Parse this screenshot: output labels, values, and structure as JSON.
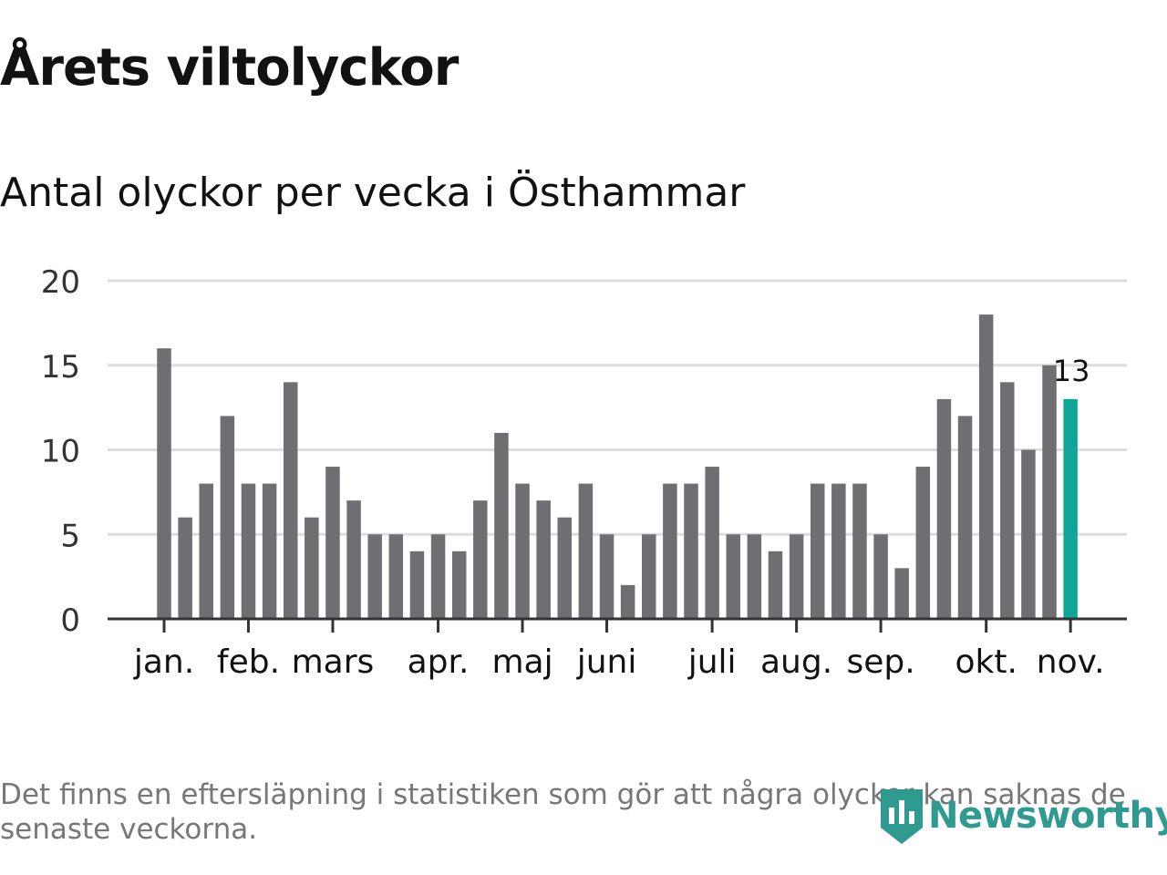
{
  "title": "Årets viltolyckor",
  "subtitle": "Antal olyckor per vecka i Östhammar",
  "footnote": "Det finns en eftersläpning i statistiken som gör att några olyckor kan saknas de senaste veckorna.",
  "brand": "Newsworthy",
  "colors": {
    "bar": "#6f6e73",
    "highlight": "#11a59a",
    "grid": "#dddddd",
    "axis": "#333333",
    "text": "#121212",
    "footnote": "#777777",
    "brand": "#2e9a90"
  },
  "chart_data": {
    "type": "bar",
    "title": "Antal olyckor per vecka i Östhammar",
    "xlabel": "",
    "ylabel": "",
    "ylim": [
      0,
      20
    ],
    "yticks": [
      0,
      5,
      10,
      15,
      20
    ],
    "grid": true,
    "values": [
      16,
      6,
      8,
      12,
      8,
      8,
      14,
      6,
      9,
      7,
      5,
      5,
      4,
      5,
      4,
      7,
      11,
      8,
      7,
      6,
      8,
      5,
      2,
      5,
      8,
      8,
      9,
      5,
      5,
      4,
      5,
      8,
      8,
      8,
      5,
      3,
      9,
      13,
      12,
      18,
      14,
      10,
      15,
      13
    ],
    "highlight_index": 43,
    "highlight_label": "13",
    "months": [
      {
        "label": "jan.",
        "week_index": 0
      },
      {
        "label": "feb.",
        "week_index": 4
      },
      {
        "label": "mars",
        "week_index": 8
      },
      {
        "label": "apr.",
        "week_index": 13
      },
      {
        "label": "maj",
        "week_index": 17
      },
      {
        "label": "juni",
        "week_index": 21
      },
      {
        "label": "juli",
        "week_index": 26
      },
      {
        "label": "aug.",
        "week_index": 30
      },
      {
        "label": "sep.",
        "week_index": 34
      },
      {
        "label": "okt.",
        "week_index": 39
      },
      {
        "label": "nov.",
        "week_index": 43
      }
    ]
  }
}
